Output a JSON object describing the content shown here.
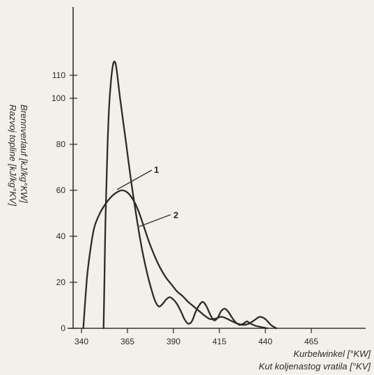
{
  "chart_data": {
    "type": "line",
    "xlabel": [
      "Kurbelwinkel [°KW]",
      "Kut koljenastog vratila [°KV]"
    ],
    "ylabel": [
      "Brennverlauf  [kJ/kg°KW]",
      "Razvoj topline [kJ/kg°KV]"
    ],
    "xlim": [
      340,
      475
    ],
    "ylim": [
      0,
      120
    ],
    "xticks": [
      340,
      365,
      390,
      415,
      440,
      465
    ],
    "yticks": [
      0,
      20,
      40,
      60,
      80,
      100,
      110
    ],
    "grid": false,
    "series": [
      {
        "name": "1",
        "x": [
          341,
          343,
          345,
          347,
          350,
          353,
          356,
          359,
          362,
          365,
          368,
          371,
          374,
          377,
          380,
          383,
          386,
          389,
          392,
          395,
          398,
          401,
          404,
          407,
          410,
          413,
          416,
          419,
          422,
          425,
          428,
          431,
          434,
          437,
          440,
          443,
          446
        ],
        "y": [
          0,
          22,
          35,
          44,
          50,
          54,
          57,
          59,
          60,
          59,
          56,
          51,
          44,
          37,
          31,
          26,
          22,
          19,
          16,
          14,
          11.5,
          9.5,
          7.5,
          5.5,
          4,
          4.2,
          5,
          4.2,
          3,
          2,
          1.5,
          2,
          3.5,
          5,
          4,
          1.5,
          0
        ]
      },
      {
        "name": "2",
        "x": [
          352,
          352.5,
          353,
          354,
          355,
          356,
          357,
          358,
          359,
          361,
          364,
          367,
          370,
          373,
          376,
          378,
          380,
          382,
          384,
          386,
          388,
          390,
          392,
          394,
          396,
          398,
          400,
          402,
          404,
          406,
          408,
          410,
          412,
          414,
          416,
          418,
          420,
          422,
          424,
          426,
          428,
          430,
          432,
          435,
          438,
          441
        ],
        "y": [
          0,
          22,
          45,
          75,
          96,
          107,
          114,
          116,
          113,
          100,
          82,
          64,
          48,
          34,
          23,
          17,
          12,
          9.5,
          10.5,
          12.5,
          13.5,
          12.5,
          10.5,
          7.5,
          4,
          2,
          3,
          7,
          10,
          11.5,
          9.5,
          6,
          3.5,
          4.5,
          7.5,
          8.5,
          7,
          4.5,
          2.5,
          1.5,
          2,
          3,
          2,
          1,
          0.5,
          0
        ]
      }
    ]
  }
}
